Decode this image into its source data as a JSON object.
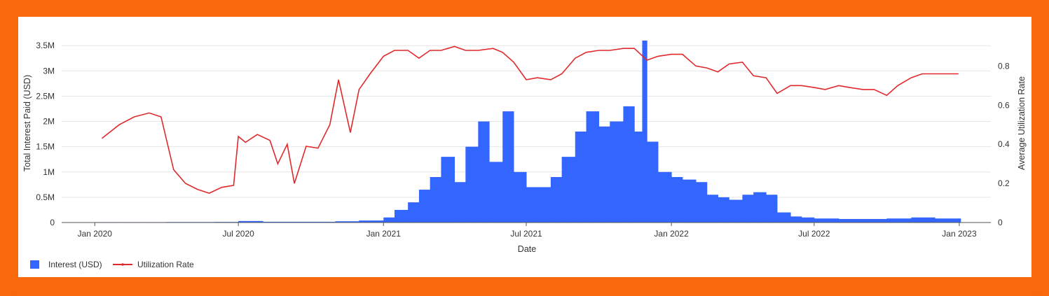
{
  "chart_data": {
    "type": "bar+line",
    "xlabel": "Date",
    "ylabel_left": "Total Interest Paid (USD)",
    "ylabel_right": "Average Utilization Rate",
    "x_ticks": [
      "Jan 2020",
      "Jul 2020",
      "Jan 2021",
      "Jul 2021",
      "Jan 2022",
      "Jul 2022",
      "Jan 2023"
    ],
    "y_left_ticks": [
      "0",
      "0.5M",
      "1M",
      "1.5M",
      "2M",
      "2.5M",
      "3M",
      "3.5M"
    ],
    "y_right_ticks": [
      "0",
      "0.2",
      "0.4",
      "0.6",
      "0.8"
    ],
    "y_left_range": [
      0,
      3600000
    ],
    "y_right_range": [
      0,
      0.93
    ],
    "x_range": [
      "2019-11-20",
      "2023-02-10"
    ],
    "grid": true,
    "legend_position": "bottom-left",
    "colors": {
      "interest": "#3366ff",
      "utilization": "#e0292b"
    },
    "series": [
      {
        "name": "Interest (USD)",
        "type": "bar",
        "x": [
          "2020-01-01",
          "2020-02-01",
          "2020-03-01",
          "2020-04-01",
          "2020-05-01",
          "2020-06-01",
          "2020-07-01",
          "2020-08-01",
          "2020-09-01",
          "2020-10-01",
          "2020-11-01",
          "2020-12-01",
          "2021-01-01",
          "2021-01-15",
          "2021-02-01",
          "2021-02-15",
          "2021-03-01",
          "2021-03-15",
          "2021-04-01",
          "2021-04-15",
          "2021-05-01",
          "2021-05-15",
          "2021-06-01",
          "2021-06-15",
          "2021-07-01",
          "2021-07-15",
          "2021-08-01",
          "2021-08-15",
          "2021-09-01",
          "2021-09-15",
          "2021-10-01",
          "2021-10-15",
          "2021-11-01",
          "2021-11-15",
          "2021-11-25",
          "2021-12-01",
          "2021-12-15",
          "2022-01-01",
          "2022-01-15",
          "2022-02-01",
          "2022-02-15",
          "2022-03-01",
          "2022-03-15",
          "2022-04-01",
          "2022-04-15",
          "2022-05-01",
          "2022-05-15",
          "2022-06-01",
          "2022-06-15",
          "2022-07-01",
          "2022-08-01",
          "2022-09-01",
          "2022-10-01",
          "2022-11-01",
          "2022-12-01",
          "2022-12-31"
        ],
        "values": [
          8000,
          8000,
          8000,
          10000,
          10000,
          12000,
          30000,
          15000,
          15000,
          15000,
          25000,
          40000,
          100000,
          250000,
          400000,
          650000,
          900000,
          1300000,
          800000,
          1500000,
          2000000,
          1200000,
          2200000,
          1000000,
          700000,
          700000,
          900000,
          1300000,
          1800000,
          2200000,
          1900000,
          2000000,
          2300000,
          1800000,
          3600000,
          1600000,
          1000000,
          900000,
          850000,
          800000,
          550000,
          500000,
          450000,
          550000,
          600000,
          550000,
          200000,
          120000,
          100000,
          80000,
          70000,
          70000,
          80000,
          100000,
          80000,
          80000
        ]
      },
      {
        "name": "Utilization Rate",
        "type": "line",
        "x": [
          "2020-01-10",
          "2020-02-01",
          "2020-02-20",
          "2020-03-10",
          "2020-03-25",
          "2020-04-10",
          "2020-04-25",
          "2020-05-10",
          "2020-05-25",
          "2020-06-10",
          "2020-06-25",
          "2020-07-01",
          "2020-07-10",
          "2020-07-25",
          "2020-08-10",
          "2020-08-20",
          "2020-09-01",
          "2020-09-10",
          "2020-09-25",
          "2020-10-10",
          "2020-10-25",
          "2020-11-05",
          "2020-11-20",
          "2020-12-01",
          "2020-12-15",
          "2021-01-01",
          "2021-01-15",
          "2021-02-01",
          "2021-02-15",
          "2021-03-01",
          "2021-03-15",
          "2021-04-01",
          "2021-04-15",
          "2021-05-01",
          "2021-05-20",
          "2021-06-01",
          "2021-06-15",
          "2021-07-01",
          "2021-07-15",
          "2021-08-01",
          "2021-08-15",
          "2021-09-01",
          "2021-09-15",
          "2021-10-01",
          "2021-10-15",
          "2021-11-01",
          "2021-11-15",
          "2021-12-01",
          "2021-12-15",
          "2022-01-01",
          "2022-01-15",
          "2022-02-01",
          "2022-02-15",
          "2022-03-01",
          "2022-03-15",
          "2022-04-01",
          "2022-04-15",
          "2022-05-01",
          "2022-05-15",
          "2022-06-01",
          "2022-06-15",
          "2022-07-01",
          "2022-07-15",
          "2022-08-01",
          "2022-08-15",
          "2022-09-01",
          "2022-09-15",
          "2022-10-01",
          "2022-10-15",
          "2022-11-01",
          "2022-11-15",
          "2022-12-01",
          "2022-12-15",
          "2022-12-31"
        ],
        "values": [
          0.43,
          0.5,
          0.54,
          0.56,
          0.54,
          0.27,
          0.2,
          0.17,
          0.15,
          0.18,
          0.19,
          0.44,
          0.41,
          0.45,
          0.42,
          0.3,
          0.4,
          0.2,
          0.39,
          0.38,
          0.5,
          0.73,
          0.46,
          0.68,
          0.76,
          0.85,
          0.88,
          0.88,
          0.84,
          0.88,
          0.88,
          0.9,
          0.88,
          0.88,
          0.89,
          0.87,
          0.82,
          0.73,
          0.74,
          0.73,
          0.76,
          0.84,
          0.87,
          0.88,
          0.88,
          0.89,
          0.89,
          0.83,
          0.85,
          0.86,
          0.86,
          0.8,
          0.79,
          0.77,
          0.81,
          0.82,
          0.75,
          0.74,
          0.66,
          0.7,
          0.7,
          0.69,
          0.68,
          0.7,
          0.69,
          0.68,
          0.68,
          0.65,
          0.7,
          0.74,
          0.76,
          0.76,
          0.76,
          0.76
        ]
      }
    ]
  }
}
